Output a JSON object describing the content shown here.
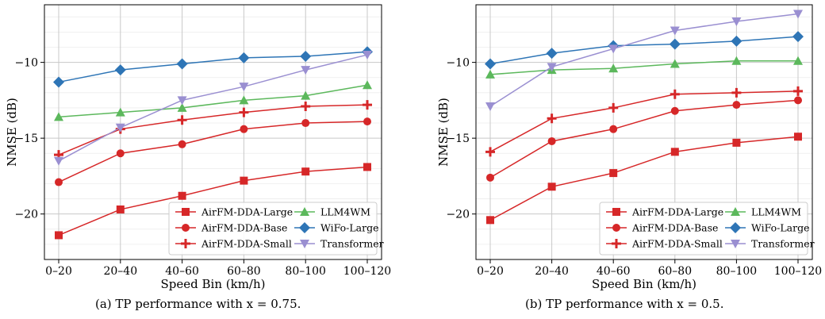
{
  "chart_data": [
    {
      "type": "line",
      "caption": "(a) TP performance with x = 0.75.",
      "xlabel": "Speed Bin (km/h)",
      "ylabel": "NMSE (dB)",
      "categories": [
        "0–20",
        "20–40",
        "40–60",
        "60–80",
        "80–100",
        "100–120"
      ],
      "ylim": [
        -23,
        -6.2
      ],
      "yticks": [
        -20,
        -15,
        -10
      ],
      "ytick_labels": [
        "−20",
        "−15",
        "−10"
      ],
      "grid": true,
      "legend_position": "lower-right",
      "series": [
        {
          "name": "AirFM-DDA-Large",
          "marker": "square",
          "color": "#d62728",
          "values": [
            -21.4,
            -19.7,
            -18.8,
            -17.8,
            -17.2,
            -16.9
          ]
        },
        {
          "name": "AirFM-DDA-Base",
          "marker": "circle",
          "color": "#d62728",
          "values": [
            -17.9,
            -16.0,
            -15.4,
            -14.4,
            -14.0,
            -13.9
          ]
        },
        {
          "name": "AirFM-DDA-Small",
          "marker": "plus",
          "color": "#d62728",
          "values": [
            -16.1,
            -14.4,
            -13.8,
            -13.3,
            -12.9,
            -12.8
          ]
        },
        {
          "name": "LLM4WM",
          "marker": "triangle-up",
          "color": "#5cb85c",
          "values": [
            -13.6,
            -13.3,
            -13.0,
            -12.5,
            -12.2,
            -11.5
          ]
        },
        {
          "name": "WiFo-Large",
          "marker": "diamond",
          "color": "#2e75b6",
          "values": [
            -11.3,
            -10.5,
            -10.1,
            -9.7,
            -9.6,
            -9.3
          ]
        },
        {
          "name": "Transformer",
          "marker": "triangle-down",
          "color": "#9a8fd1",
          "values": [
            -16.5,
            -14.3,
            -12.5,
            -11.6,
            -10.5,
            -9.5
          ]
        }
      ]
    },
    {
      "type": "line",
      "caption": "(b) TP performance with x = 0.5.",
      "xlabel": "Speed Bin (km/h)",
      "ylabel": "NMSE (dB)",
      "categories": [
        "0–20",
        "20–40",
        "40–60",
        "60–80",
        "80–100",
        "100–120"
      ],
      "ylim": [
        -23,
        -6.2
      ],
      "yticks": [
        -20,
        -15,
        -10
      ],
      "ytick_labels": [
        "−20",
        "−15",
        "−10"
      ],
      "grid": true,
      "legend_position": "lower-right",
      "series": [
        {
          "name": "AirFM-DDA-Large",
          "marker": "square",
          "color": "#d62728",
          "values": [
            -20.4,
            -18.2,
            -17.3,
            -15.9,
            -15.3,
            -14.9
          ]
        },
        {
          "name": "AirFM-DDA-Base",
          "marker": "circle",
          "color": "#d62728",
          "values": [
            -17.6,
            -15.2,
            -14.4,
            -13.2,
            -12.8,
            -12.5
          ]
        },
        {
          "name": "AirFM-DDA-Small",
          "marker": "plus",
          "color": "#d62728",
          "values": [
            -15.9,
            -13.7,
            -13.0,
            -12.1,
            -12.0,
            -11.9
          ]
        },
        {
          "name": "LLM4WM",
          "marker": "triangle-up",
          "color": "#5cb85c",
          "values": [
            -10.8,
            -10.5,
            -10.4,
            -10.1,
            -9.9,
            -9.9
          ]
        },
        {
          "name": "WiFo-Large",
          "marker": "diamond",
          "color": "#2e75b6",
          "values": [
            -10.1,
            -9.4,
            -8.9,
            -8.8,
            -8.6,
            -8.3
          ]
        },
        {
          "name": "Transformer",
          "marker": "triangle-down",
          "color": "#9a8fd1",
          "values": [
            -12.9,
            -10.3,
            -9.1,
            -7.9,
            -7.3,
            -6.8
          ]
        }
      ]
    }
  ]
}
